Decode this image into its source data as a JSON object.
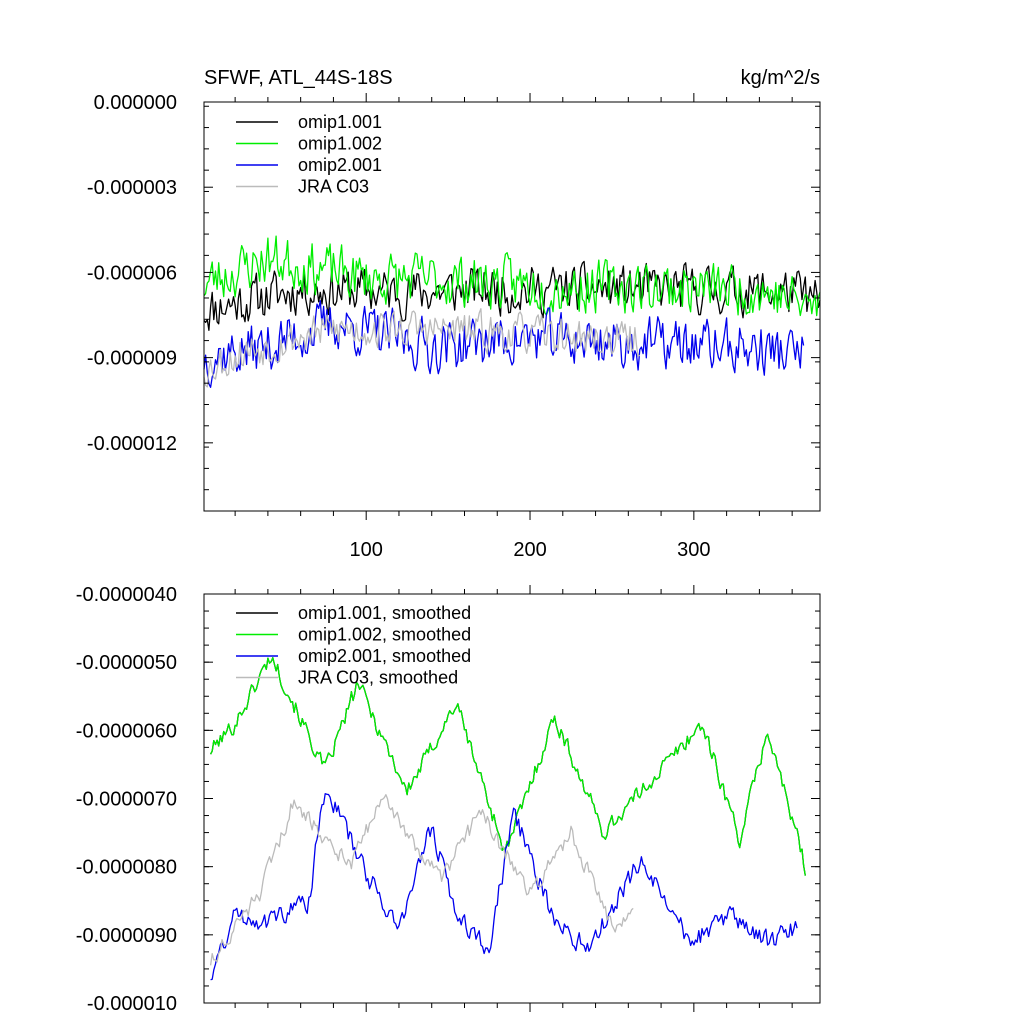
{
  "chart_data": [
    {
      "type": "line",
      "title": "SFWF, ATL_44S-18S",
      "units": "kg/m^2/s",
      "xlabel": "",
      "ylabel": "",
      "xlim": [
        1,
        377
      ],
      "ylim": [
        -1.44e-05,
        0.0
      ],
      "xticks": [
        100,
        200,
        300
      ],
      "xtick_labels": [
        "100",
        "200",
        "300"
      ],
      "yticks": [
        0.0,
        -3e-06,
        -6e-06,
        -9e-06,
        -1.2e-05
      ],
      "ytick_labels": [
        "0.000000",
        "-0.000003",
        "-0.000006",
        "-0.000009",
        "-0.000012"
      ],
      "legend": [
        "omip1.001",
        "omip1.002",
        "omip2.001",
        "JRA C03"
      ],
      "legend_position": "top-left",
      "series": [
        {
          "name": "omip1.001",
          "color": "#000000",
          "x_start": 1,
          "x_end": 377,
          "key_x": [
            1,
            60,
            120,
            180,
            240,
            300,
            360,
            377
          ],
          "key_y": [
            -7.3e-06,
            -6.6e-06,
            -6.7e-06,
            -6.6e-06,
            -6.6e-06,
            -6.6e-06,
            -6.7e-06,
            -7.1e-06
          ],
          "noise": 1e-06,
          "seed": 11
        },
        {
          "name": "omip1.002",
          "color": "#00ee00",
          "x_start": 1,
          "x_end": 377,
          "key_x": [
            1,
            40,
            100,
            160,
            220,
            280,
            340,
            377
          ],
          "key_y": [
            -6.4e-06,
            -5.5e-06,
            -6.2e-06,
            -6.3e-06,
            -6.5e-06,
            -6.5e-06,
            -6.6e-06,
            -7.3e-06
          ],
          "noise": 1.1e-06,
          "seed": 23
        },
        {
          "name": "omip2.001",
          "color": "#0000ee",
          "x_start": 1,
          "x_end": 367,
          "key_x": [
            1,
            40,
            80,
            140,
            200,
            260,
            320,
            367
          ],
          "key_y": [
            -9e-06,
            -8.6e-06,
            -7.8e-06,
            -8.6e-06,
            -8.3e-06,
            -8.5e-06,
            -8.6e-06,
            -8.9e-06
          ],
          "noise": 1.1e-06,
          "seed": 37
        },
        {
          "name": "JRA C03",
          "color": "#bbbbbb",
          "x_start": 1,
          "x_end": 267,
          "key_x": [
            1,
            30,
            80,
            130,
            180,
            230,
            267
          ],
          "key_y": [
            -9.4e-06,
            -8.7e-06,
            -8e-06,
            -8e-06,
            -8.1e-06,
            -8.3e-06,
            -8.4e-06
          ],
          "noise": 8e-07,
          "seed": 53
        }
      ]
    },
    {
      "type": "line",
      "title": "",
      "xlabel": "",
      "ylabel": "",
      "xlim": [
        1,
        377
      ],
      "ylim": [
        -1e-05,
        -4e-06
      ],
      "xticks": [
        100,
        200,
        300
      ],
      "xtick_labels": [
        "",
        "",
        ""
      ],
      "yticks": [
        -4e-06,
        -5e-06,
        -6e-06,
        -7e-06,
        -8e-06,
        -9e-06,
        -1e-05
      ],
      "ytick_labels": [
        "-0.0000040",
        "-0.0000050",
        "-0.0000060",
        "-0.0000070",
        "-0.0000080",
        "-0.0000090",
        "-0.000010"
      ],
      "legend": [
        "omip1.001, smoothed",
        "omip1.002, smoothed",
        "omip2.001, smoothed",
        "JRA C03, smoothed"
      ],
      "legend_position": "top-left",
      "series": [
        {
          "name": "omip1.001, smoothed",
          "color": "#000000",
          "x_start": 5,
          "x_end": 368,
          "key_x": [
            5,
            20,
            42,
            75,
            95,
            125,
            155,
            185,
            215,
            245,
            275,
            305,
            328,
            345,
            368
          ],
          "key_y": [
            -6.3e-06,
            -5.9e-06,
            -4.9e-06,
            -6.6e-06,
            -5.3e-06,
            -6.9e-06,
            -5.6e-06,
            -7.8e-06,
            -5.8e-06,
            -7.5e-06,
            -6.7e-06,
            -5.9e-06,
            -7.6e-06,
            -6e-06,
            -8e-06
          ],
          "noise": 1.5e-07,
          "seed": 101
        },
        {
          "name": "omip1.002, smoothed",
          "color": "#00ee00",
          "x_start": 5,
          "x_end": 368,
          "key_x": [
            5,
            20,
            42,
            75,
            95,
            125,
            155,
            185,
            215,
            245,
            275,
            305,
            328,
            345,
            368
          ],
          "key_y": [
            -6.3e-06,
            -5.9e-06,
            -4.9e-06,
            -6.6e-06,
            -5.3e-06,
            -6.9e-06,
            -5.6e-06,
            -7.8e-06,
            -5.8e-06,
            -7.5e-06,
            -6.7e-06,
            -5.9e-06,
            -7.6e-06,
            -6e-06,
            -8e-06
          ],
          "noise": 1.5e-07,
          "seed": 101
        },
        {
          "name": "omip2.001, smoothed",
          "color": "#0000ee",
          "x_start": 5,
          "x_end": 363,
          "key_x": [
            5,
            20,
            40,
            65,
            75,
            100,
            120,
            140,
            155,
            175,
            190,
            215,
            235,
            255,
            268,
            285,
            300,
            320,
            345,
            363
          ],
          "key_y": [
            -9.6e-06,
            -8.7e-06,
            -8.8e-06,
            -8.5e-06,
            -6.8e-06,
            -8.1e-06,
            -8.9e-06,
            -7.4e-06,
            -8.7e-06,
            -9.2e-06,
            -7.2e-06,
            -8.8e-06,
            -9.2e-06,
            -8.4e-06,
            -7.9e-06,
            -8.7e-06,
            -9.1e-06,
            -8.7e-06,
            -9.1e-06,
            -8.9e-06
          ],
          "noise": 1.8e-07,
          "seed": 131
        },
        {
          "name": "JRA C03, smoothed",
          "color": "#bbbbbb",
          "x_start": 5,
          "x_end": 263,
          "key_x": [
            5,
            35,
            55,
            65,
            90,
            110,
            145,
            170,
            200,
            225,
            250,
            263
          ],
          "key_y": [
            -9.4e-06,
            -8.4e-06,
            -7.1e-06,
            -7.3e-06,
            -8e-06,
            -7e-06,
            -8.2e-06,
            -7.2e-06,
            -8.4e-06,
            -7.5e-06,
            -8.9e-06,
            -8.7e-06
          ],
          "noise": 1.5e-07,
          "seed": 151
        }
      ]
    }
  ]
}
